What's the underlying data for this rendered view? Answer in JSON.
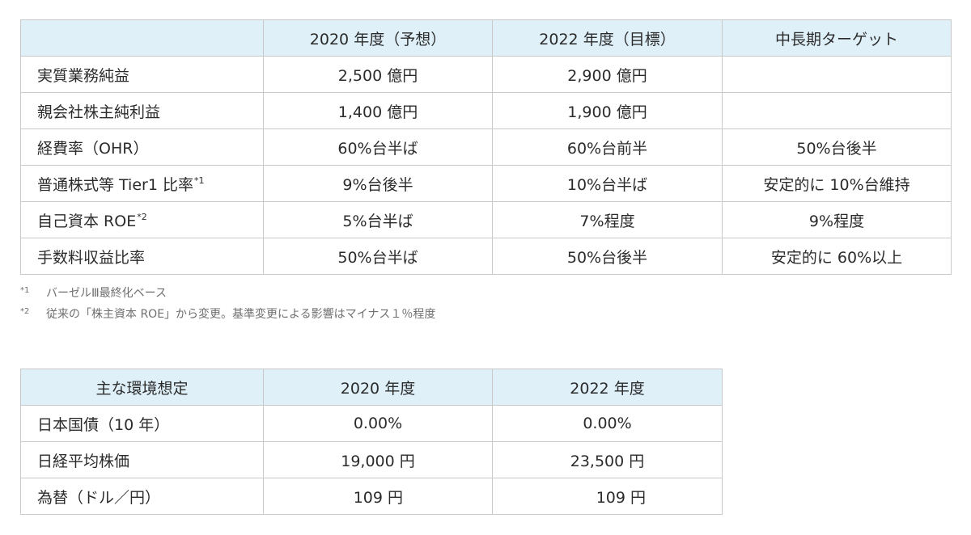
{
  "targets_table": {
    "headers": [
      "",
      "2020 年度（予想）",
      "2022 年度（目標）",
      "中長期ターゲット"
    ],
    "rows": [
      {
        "label": "実質業務純益",
        "sup": "",
        "values": [
          "2,500 億円",
          "2,900 億円",
          ""
        ]
      },
      {
        "label": "親会社株主純利益",
        "sup": "",
        "values": [
          "1,400 億円",
          "1,900 億円",
          ""
        ]
      },
      {
        "label": "経費率（OHR）",
        "sup": "",
        "values": [
          "60%台半ば",
          "60%台前半",
          "50%台後半"
        ]
      },
      {
        "label": "普通株式等 Tier1 比率",
        "sup": "*1",
        "values": [
          "9%台後半",
          "10%台半ば",
          "安定的に 10%台維持"
        ]
      },
      {
        "label": "自己資本 ROE",
        "sup": "*2",
        "values": [
          "5%台半ば",
          "7%程度",
          "9%程度"
        ]
      },
      {
        "label": "手数料収益比率",
        "sup": "",
        "values": [
          "50%台半ば",
          "50%台後半",
          "安定的に 60%以上"
        ]
      }
    ]
  },
  "notes": [
    {
      "mark": "*1",
      "text": "バーゼルⅢ最終化ベース"
    },
    {
      "mark": "*2",
      "text": "従来の「株主資本 ROE」から変更。基準変更による影響はマイナス１％程度"
    }
  ],
  "environment_table": {
    "headers": [
      "主な環境想定",
      "2020 年度",
      "2022 年度"
    ],
    "rows": [
      {
        "label": "日本国債（10 年）",
        "values": [
          "0.00%",
          "0.00%"
        ]
      },
      {
        "label": "日経平均株価",
        "values": [
          "19,000 円",
          "23,500 円"
        ]
      },
      {
        "label": "為替（ドル／円）",
        "values": [
          "109 円",
          "109 円"
        ]
      }
    ]
  },
  "colors": {
    "header_bg": "#dff0f8",
    "border": "#c9c9c9",
    "text": "#2b2b2b",
    "note_text": "#6f6f6f"
  }
}
